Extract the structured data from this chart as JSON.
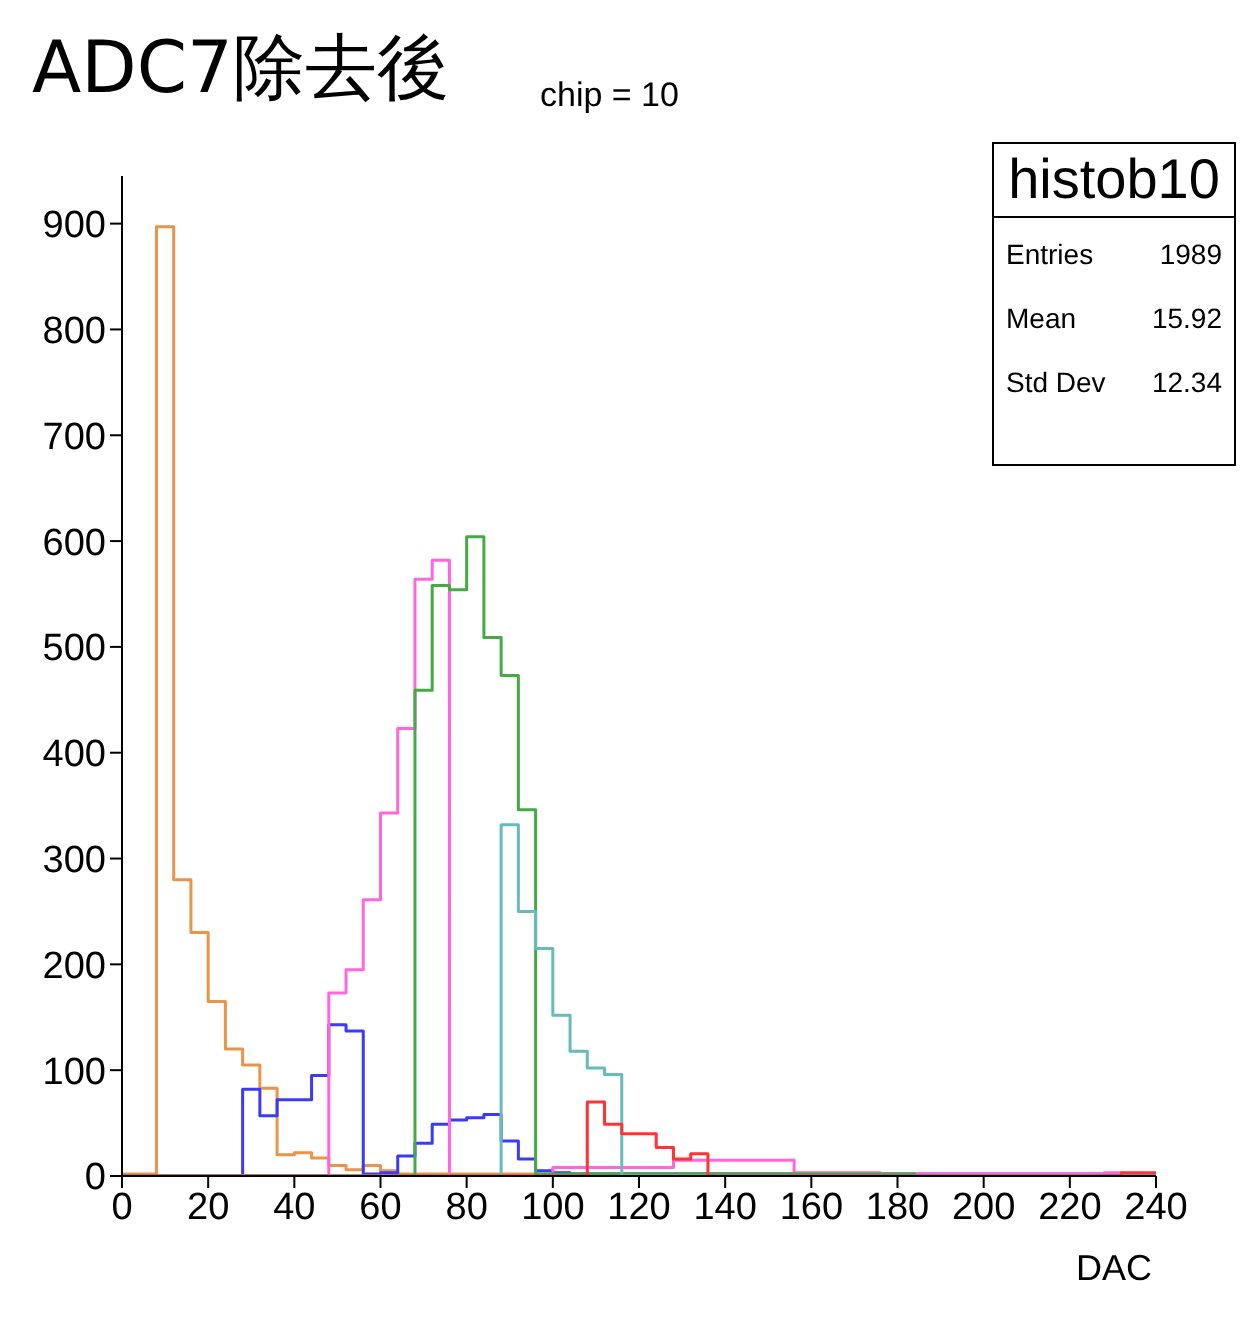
{
  "chart_data": {
    "type": "histogram",
    "title": "ADC7除去後",
    "subtitle": "chip = 10",
    "xlabel": "DAC",
    "bins": [
      0,
      4,
      8,
      12,
      16,
      20,
      24,
      28,
      32,
      36,
      40,
      44,
      48,
      52,
      56,
      60,
      64,
      68,
      72,
      76,
      80,
      84,
      88,
      92,
      96,
      100,
      104,
      108,
      112,
      116,
      120,
      124,
      128,
      132,
      136,
      140,
      144,
      148,
      152,
      156,
      160,
      164,
      168,
      172,
      176,
      180,
      184,
      188,
      192,
      196,
      200,
      204,
      208,
      212,
      216,
      220,
      224,
      228,
      232,
      236,
      240
    ],
    "series": [
      {
        "color": "#e8944a",
        "values": [
          2,
          2,
          897,
          280,
          230,
          165,
          120,
          105,
          83,
          20,
          22,
          17,
          10,
          6,
          10,
          5,
          2,
          2,
          2,
          2,
          2,
          2,
          2,
          2,
          2,
          2,
          2,
          2,
          2,
          2,
          2,
          2,
          2,
          2,
          2,
          2,
          2,
          2,
          2,
          2,
          0,
          0,
          0,
          0,
          0,
          0,
          0,
          0,
          0,
          0,
          0,
          0,
          0,
          0,
          0,
          0,
          0,
          0,
          0,
          0
        ]
      },
      {
        "color": "#3a3aff",
        "values": [
          0,
          0,
          0,
          0,
          0,
          0,
          0,
          82,
          57,
          72,
          72,
          95,
          143,
          137,
          2,
          3,
          19,
          31,
          49,
          53,
          55,
          58,
          33,
          16,
          5,
          3,
          2,
          2,
          2,
          2,
          2,
          2,
          2,
          2,
          2,
          2,
          2,
          2,
          2,
          2,
          2,
          2,
          2,
          2,
          2,
          2,
          2,
          2,
          2,
          2,
          2,
          2,
          2,
          2,
          2,
          2,
          2,
          2,
          2,
          2
        ]
      },
      {
        "color": "#ff66dd",
        "values": [
          0,
          0,
          0,
          0,
          0,
          0,
          0,
          0,
          0,
          0,
          0,
          0,
          173,
          195,
          261,
          343,
          423,
          564,
          582,
          0,
          0,
          0,
          0,
          0,
          0,
          8,
          8,
          8,
          8,
          8,
          8,
          8,
          15,
          15,
          15,
          15,
          15,
          15,
          15,
          3,
          3,
          3,
          3,
          3,
          2,
          2,
          2,
          2,
          2,
          2,
          2,
          2,
          2,
          2,
          2,
          2,
          2,
          3,
          0,
          0
        ]
      },
      {
        "color": "#44aa44",
        "values": [
          0,
          0,
          0,
          0,
          0,
          0,
          0,
          0,
          0,
          0,
          0,
          0,
          0,
          0,
          0,
          0,
          0,
          459,
          558,
          554,
          604,
          509,
          473,
          346,
          2,
          2,
          2,
          2,
          2,
          2,
          2,
          2,
          2,
          2,
          2,
          2,
          2,
          2,
          2,
          2,
          2,
          2,
          2,
          2,
          2,
          2,
          0,
          0,
          0,
          0,
          0,
          0,
          0,
          0,
          0,
          0,
          0,
          0,
          0,
          0
        ]
      },
      {
        "color": "#66bbbb",
        "values": [
          0,
          0,
          0,
          0,
          0,
          0,
          0,
          0,
          0,
          0,
          0,
          0,
          0,
          0,
          0,
          0,
          0,
          0,
          0,
          0,
          0,
          0,
          332,
          250,
          215,
          152,
          118,
          102,
          96,
          0,
          0,
          0,
          0,
          0,
          0,
          0,
          0,
          0,
          0,
          0,
          0,
          0,
          0,
          0,
          0,
          0,
          0,
          0,
          0,
          0,
          0,
          0,
          0,
          0,
          0,
          0,
          0,
          0,
          0,
          0
        ]
      },
      {
        "color": "#ff3333",
        "values": [
          0,
          0,
          0,
          0,
          0,
          0,
          0,
          0,
          0,
          0,
          0,
          0,
          0,
          0,
          0,
          0,
          0,
          0,
          0,
          0,
          0,
          0,
          0,
          0,
          0,
          0,
          0,
          70,
          49,
          40,
          40,
          27,
          16,
          21,
          0,
          0,
          0,
          0,
          0,
          0,
          0,
          0,
          0,
          0,
          0,
          0,
          0,
          0,
          0,
          0,
          0,
          0,
          0,
          0,
          0,
          0,
          0,
          0,
          3,
          3
        ]
      }
    ],
    "xlim": [
      0,
      240
    ],
    "xticks": [
      0,
      20,
      40,
      60,
      80,
      100,
      120,
      140,
      160,
      180,
      200,
      220,
      240
    ],
    "ylim": [
      0,
      945
    ],
    "yticks": [
      0,
      100,
      200,
      300,
      400,
      500,
      600,
      700,
      800,
      900
    ],
    "annotations": [
      "histob10",
      "Entries",
      "1989",
      "Mean",
      "15.92",
      "Std Dev",
      "12.34"
    ]
  }
}
